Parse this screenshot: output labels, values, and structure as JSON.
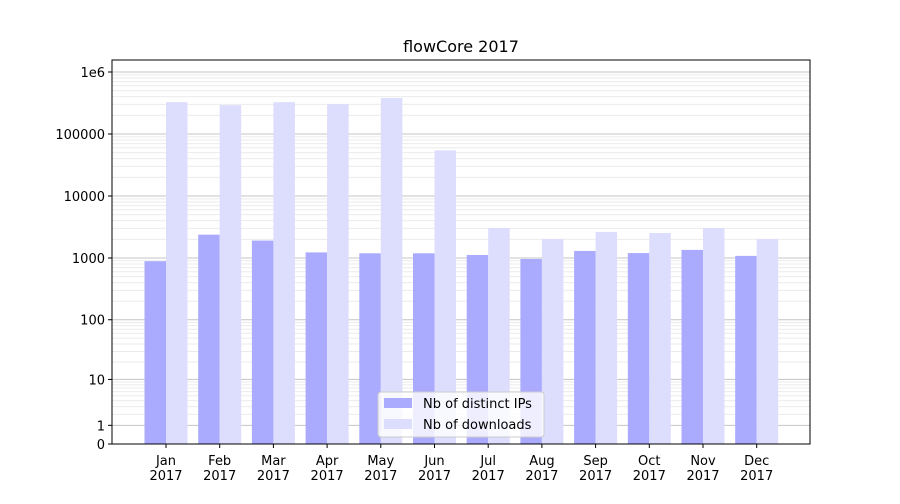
{
  "chart_data": {
    "type": "bar",
    "title": "flowCore 2017",
    "xlabel": "",
    "ylabel": "",
    "yscale": "log10(1+x)",
    "ylim": [
      0,
      1500000
    ],
    "y_ticks": [
      0,
      1,
      10,
      100,
      1000,
      10000,
      100000,
      1000000
    ],
    "y_tick_labels": [
      "0",
      "1",
      "10",
      "100",
      "1000",
      "10000",
      "100000",
      "1e6"
    ],
    "grid": true,
    "categories": [
      "Jan\n2017",
      "Feb\n2017",
      "Mar\n2017",
      "Apr\n2017",
      "May\n2017",
      "Jun\n2017",
      "Jul\n2017",
      "Aug\n2017",
      "Sep\n2017",
      "Oct\n2017",
      "Nov\n2017",
      "Dec\n2017"
    ],
    "series": [
      {
        "name": "Nb of distinct IPs",
        "color": "#aaaaff",
        "values": [
          887,
          2380,
          1910,
          1230,
          1190,
          1190,
          1117,
          963,
          1300,
          1200,
          1350,
          1080
        ]
      },
      {
        "name": "Nb of downloads",
        "color": "#ddddfd",
        "values": [
          326000,
          292000,
          326000,
          303000,
          381000,
          54300,
          3050,
          2020,
          2630,
          2530,
          3050,
          2020
        ]
      }
    ],
    "legend_position": "lower center"
  }
}
